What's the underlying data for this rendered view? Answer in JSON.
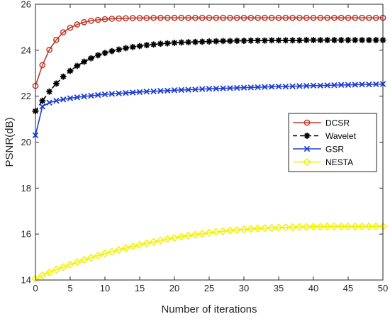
{
  "chart_data": {
    "type": "line",
    "title": "",
    "xlabel": "Number of iterations",
    "ylabel": "PSNR(dB)",
    "xlim": [
      0,
      50
    ],
    "ylim": [
      14,
      26
    ],
    "xticks": [
      0,
      5,
      10,
      15,
      20,
      25,
      30,
      35,
      40,
      45,
      50
    ],
    "yticks": [
      14,
      16,
      18,
      20,
      22,
      24,
      26
    ],
    "grid": false,
    "legend_position": "right",
    "series": [
      {
        "name": "DCSR",
        "color": "#c0392b",
        "marker": "circle",
        "line": "solid",
        "x": [
          0,
          1,
          2,
          3,
          4,
          5,
          6,
          7,
          8,
          9,
          10,
          11,
          12,
          13,
          14,
          15,
          16,
          17,
          18,
          19,
          20,
          21,
          22,
          23,
          24,
          25,
          26,
          27,
          28,
          29,
          30,
          31,
          32,
          33,
          34,
          35,
          36,
          37,
          38,
          39,
          40,
          41,
          42,
          43,
          44,
          45,
          46,
          47,
          48,
          49,
          50
        ],
        "y": [
          22.45,
          23.35,
          24.02,
          24.45,
          24.78,
          24.98,
          25.12,
          25.22,
          25.28,
          25.32,
          25.35,
          25.37,
          25.38,
          25.39,
          25.4,
          25.4,
          25.4,
          25.41,
          25.41,
          25.41,
          25.41,
          25.41,
          25.41,
          25.41,
          25.41,
          25.41,
          25.41,
          25.41,
          25.41,
          25.41,
          25.41,
          25.41,
          25.41,
          25.41,
          25.41,
          25.41,
          25.41,
          25.41,
          25.41,
          25.41,
          25.41,
          25.41,
          25.41,
          25.41,
          25.41,
          25.41,
          25.41,
          25.41,
          25.41,
          25.41,
          25.41
        ]
      },
      {
        "name": "Wavelet",
        "color": "#000000",
        "marker": "star",
        "line": "dashed",
        "x": [
          0,
          1,
          2,
          3,
          4,
          5,
          6,
          7,
          8,
          9,
          10,
          11,
          12,
          13,
          14,
          15,
          16,
          17,
          18,
          19,
          20,
          21,
          22,
          23,
          24,
          25,
          26,
          27,
          28,
          29,
          30,
          31,
          32,
          33,
          34,
          35,
          36,
          37,
          38,
          39,
          40,
          41,
          42,
          43,
          44,
          45,
          46,
          47,
          48,
          49,
          50
        ],
        "y": [
          21.35,
          21.8,
          22.2,
          22.55,
          22.85,
          23.1,
          23.32,
          23.5,
          23.65,
          23.78,
          23.88,
          23.96,
          24.03,
          24.09,
          24.14,
          24.18,
          24.22,
          24.25,
          24.28,
          24.3,
          24.32,
          24.34,
          24.35,
          24.36,
          24.37,
          24.38,
          24.39,
          24.4,
          24.4,
          24.41,
          24.41,
          24.42,
          24.42,
          24.42,
          24.43,
          24.43,
          24.43,
          24.43,
          24.43,
          24.44,
          24.44,
          24.44,
          24.44,
          24.44,
          24.44,
          24.44,
          24.44,
          24.44,
          24.44,
          24.44,
          24.44
        ]
      },
      {
        "name": "GSR",
        "color": "#1f3fd1",
        "marker": "x",
        "line": "solid",
        "x": [
          0,
          1,
          2,
          3,
          4,
          5,
          6,
          7,
          8,
          9,
          10,
          11,
          12,
          13,
          14,
          15,
          16,
          17,
          18,
          19,
          20,
          21,
          22,
          23,
          24,
          25,
          26,
          27,
          28,
          29,
          30,
          31,
          32,
          33,
          34,
          35,
          36,
          37,
          38,
          39,
          40,
          41,
          42,
          43,
          44,
          45,
          46,
          47,
          48,
          49,
          50
        ],
        "y": [
          20.3,
          21.55,
          21.72,
          21.8,
          21.86,
          21.91,
          21.95,
          21.99,
          22.02,
          22.05,
          22.08,
          22.1,
          22.12,
          22.14,
          22.16,
          22.18,
          22.2,
          22.21,
          22.23,
          22.24,
          22.26,
          22.27,
          22.28,
          22.29,
          22.31,
          22.32,
          22.33,
          22.34,
          22.35,
          22.36,
          22.37,
          22.38,
          22.39,
          22.4,
          22.41,
          22.42,
          22.42,
          22.43,
          22.44,
          22.45,
          22.46,
          22.46,
          22.47,
          22.48,
          22.49,
          22.49,
          22.5,
          22.51,
          22.51,
          22.52,
          22.53
        ]
      },
      {
        "name": "NESTA",
        "color": "#f2f200",
        "marker": "diamond",
        "line": "solid",
        "x": [
          0,
          1,
          2,
          3,
          4,
          5,
          6,
          7,
          8,
          9,
          10,
          11,
          12,
          13,
          14,
          15,
          16,
          17,
          18,
          19,
          20,
          21,
          22,
          23,
          24,
          25,
          26,
          27,
          28,
          29,
          30,
          31,
          32,
          33,
          34,
          35,
          36,
          37,
          38,
          39,
          40,
          41,
          42,
          43,
          44,
          45,
          46,
          47,
          48,
          49,
          50
        ],
        "y": [
          14.05,
          14.2,
          14.33,
          14.45,
          14.56,
          14.67,
          14.78,
          14.88,
          14.97,
          15.06,
          15.15,
          15.23,
          15.31,
          15.39,
          15.46,
          15.53,
          15.6,
          15.66,
          15.72,
          15.78,
          15.83,
          15.88,
          15.93,
          15.97,
          16.01,
          16.05,
          16.09,
          16.12,
          16.15,
          16.18,
          16.2,
          16.22,
          16.24,
          16.26,
          16.27,
          16.28,
          16.29,
          16.3,
          16.31,
          16.31,
          16.32,
          16.32,
          16.33,
          16.33,
          16.33,
          16.33,
          16.33,
          16.33,
          16.33,
          16.33,
          16.33
        ]
      }
    ]
  }
}
